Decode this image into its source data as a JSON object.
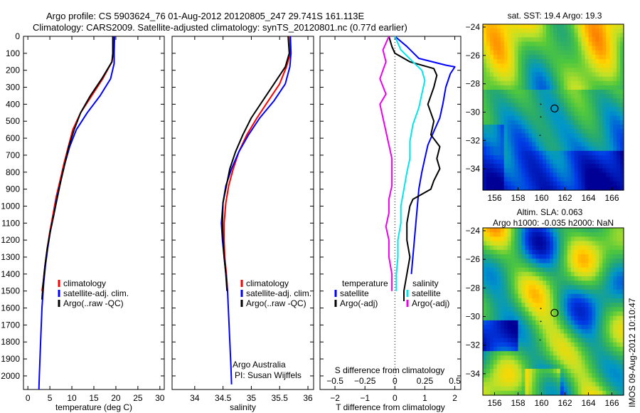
{
  "header": {
    "line1": "Argo profile: CS 5903624_76 01-Aug-2012 20120805_247 29.741S 161.113E",
    "line2": "Climatology: CARS2009. Satellite-adjusted climatology: synTS_20120801.nc (0.77d earlier)"
  },
  "watermark": "IMOS 09-Aug-2012 10:10:47",
  "credit": {
    "line1": "Argo Australia",
    "line2": "PI: Susan Wijffels"
  },
  "colors": {
    "red": "#ff0000",
    "blue": "#0000ff",
    "black": "#000000",
    "cyan": "#00e5ee",
    "magenta": "#ee00ee"
  },
  "chart_data": [
    {
      "type": "line",
      "title": "",
      "xlabel": "temperature (deg C)",
      "ylabel": "",
      "xlim": [
        -1,
        31
      ],
      "ylim": [
        2080,
        0
      ],
      "xticks": [
        0,
        5,
        10,
        15,
        20,
        25,
        30
      ],
      "yticks": [
        0,
        100,
        200,
        300,
        400,
        500,
        600,
        700,
        800,
        900,
        1000,
        1100,
        1200,
        1300,
        1400,
        1500,
        1600,
        1700,
        1800,
        1900,
        2000
      ],
      "legend": [
        "climatology",
        "satellite-adj. clim.",
        "Argo(..raw -QC)"
      ],
      "series": [
        {
          "name": "climatology",
          "color": "red",
          "points": [
            [
              19.5,
              0
            ],
            [
              19.4,
              100
            ],
            [
              19.1,
              150
            ],
            [
              17,
              250
            ],
            [
              14.5,
              350
            ],
            [
              12,
              450
            ],
            [
              10.2,
              550
            ],
            [
              9.2,
              650
            ],
            [
              8.2,
              750
            ],
            [
              7.3,
              850
            ],
            [
              6.4,
              950
            ],
            [
              5.7,
              1050
            ],
            [
              5,
              1150
            ],
            [
              4.4,
              1250
            ],
            [
              3.9,
              1350
            ],
            [
              3.5,
              1450
            ],
            [
              3.2,
              1500
            ]
          ]
        },
        {
          "name": "satellite-adj. clim.",
          "color": "blue",
          "points": [
            [
              19.7,
              0
            ],
            [
              19.6,
              100
            ],
            [
              19.6,
              160
            ],
            [
              18.8,
              250
            ],
            [
              16.4,
              350
            ],
            [
              13.5,
              450
            ],
            [
              11,
              550
            ],
            [
              9.5,
              650
            ],
            [
              8.4,
              750
            ],
            [
              7.5,
              850
            ],
            [
              6.6,
              950
            ],
            [
              5.9,
              1050
            ],
            [
              5.1,
              1150
            ],
            [
              4.5,
              1250
            ],
            [
              4,
              1350
            ],
            [
              3.6,
              1450
            ],
            [
              3.2,
              1600
            ],
            [
              2.9,
              1800
            ],
            [
              2.6,
              2000
            ],
            [
              2.5,
              2080
            ]
          ]
        },
        {
          "name": "Argo(..raw -QC)",
          "color": "black",
          "points": [
            [
              19.3,
              0
            ],
            [
              19.3,
              100
            ],
            [
              19.1,
              150
            ],
            [
              16.8,
              250
            ],
            [
              14.2,
              350
            ],
            [
              12,
              450
            ],
            [
              10.5,
              550
            ],
            [
              9.3,
              650
            ],
            [
              8.4,
              750
            ],
            [
              7.5,
              850
            ],
            [
              6.7,
              950
            ],
            [
              5.9,
              1050
            ],
            [
              5.1,
              1150
            ],
            [
              4.4,
              1250
            ],
            [
              3.9,
              1350
            ],
            [
              3.5,
              1450
            ],
            [
              3.2,
              1550
            ]
          ]
        }
      ]
    },
    {
      "type": "line",
      "title": "",
      "xlabel": "salinity",
      "ylabel": "",
      "xlim": [
        33.6,
        36.1
      ],
      "ylim": [
        2080,
        0
      ],
      "xticks": [
        34,
        34.5,
        35,
        35.5,
        36
      ],
      "legend": [
        "climatology",
        "satellite-adj. clim.",
        "Argo(..raw -QC)"
      ],
      "series": [
        {
          "name": "climatology",
          "color": "red",
          "points": [
            [
              35.68,
              0
            ],
            [
              35.69,
              100
            ],
            [
              35.62,
              180
            ],
            [
              35.5,
              280
            ],
            [
              35.3,
              380
            ],
            [
              35.1,
              480
            ],
            [
              34.92,
              580
            ],
            [
              34.78,
              680
            ],
            [
              34.68,
              780
            ],
            [
              34.6,
              880
            ],
            [
              34.55,
              980
            ],
            [
              34.52,
              1100
            ],
            [
              34.52,
              1200
            ],
            [
              34.53,
              1300
            ],
            [
              34.56,
              1400
            ],
            [
              34.58,
              1500
            ]
          ]
        },
        {
          "name": "satellite-adj. clim.",
          "color": "blue",
          "points": [
            [
              35.69,
              0
            ],
            [
              35.7,
              100
            ],
            [
              35.68,
              180
            ],
            [
              35.6,
              280
            ],
            [
              35.4,
              380
            ],
            [
              35.15,
              480
            ],
            [
              34.95,
              580
            ],
            [
              34.78,
              680
            ],
            [
              34.65,
              780
            ],
            [
              34.55,
              880
            ],
            [
              34.5,
              980
            ],
            [
              34.47,
              1100
            ],
            [
              34.49,
              1200
            ],
            [
              34.52,
              1300
            ],
            [
              34.55,
              1400
            ],
            [
              34.58,
              1500
            ],
            [
              34.6,
              1650
            ],
            [
              34.62,
              1800
            ],
            [
              34.64,
              1950
            ],
            [
              34.65,
              2050
            ]
          ]
        },
        {
          "name": "Argo(..raw -QC)",
          "color": "black",
          "points": [
            [
              35.65,
              0
            ],
            [
              35.67,
              100
            ],
            [
              35.6,
              180
            ],
            [
              35.4,
              280
            ],
            [
              35.2,
              380
            ],
            [
              35,
              480
            ],
            [
              34.85,
              580
            ],
            [
              34.72,
              680
            ],
            [
              34.62,
              780
            ],
            [
              34.56,
              880
            ],
            [
              34.5,
              980
            ],
            [
              34.49,
              1100
            ],
            [
              34.5,
              1200
            ],
            [
              34.52,
              1300
            ],
            [
              34.55,
              1400
            ],
            [
              34.57,
              1500
            ]
          ]
        }
      ]
    },
    {
      "type": "line",
      "title": "",
      "xlabel": "T difference from climatology",
      "xlabel2": "S difference from climatology",
      "ylabel": "",
      "xlim": [
        -2.5,
        2.2
      ],
      "ylim": [
        2080,
        0
      ],
      "xticks": [
        -2,
        -1,
        0,
        1,
        2
      ],
      "xticks_top": [
        -0.5,
        -0.25,
        0,
        0.25,
        0.5
      ],
      "legend_groups": [
        "temperature",
        "salinity"
      ],
      "legend": [
        "satellite",
        "Argo(-adj)",
        "satellite",
        "Argo(-adj)"
      ],
      "series": [
        {
          "name": "satellite",
          "group": "temperature",
          "color": "blue",
          "points": [
            [
              0,
              0
            ],
            [
              0.4,
              60
            ],
            [
              0.8,
              130
            ],
            [
              1.7,
              170
            ],
            [
              2.0,
              180
            ],
            [
              1.85,
              220
            ],
            [
              1.7,
              300
            ],
            [
              1.6,
              400
            ],
            [
              1.5,
              480
            ],
            [
              1.3,
              560
            ],
            [
              1.1,
              640
            ],
            [
              1.0,
              720
            ],
            [
              0.9,
              800
            ],
            [
              0.8,
              900
            ],
            [
              0.75,
              1000
            ],
            [
              0.7,
              1100
            ],
            [
              0.65,
              1200
            ],
            [
              0.6,
              1300
            ],
            [
              0.55,
              1400
            ]
          ]
        },
        {
          "name": "Argo(-adj)",
          "group": "temperature",
          "color": "black",
          "points": [
            [
              -0.2,
              0
            ],
            [
              -0.1,
              60
            ],
            [
              0,
              100
            ],
            [
              0.5,
              150
            ],
            [
              1.3,
              190
            ],
            [
              1.4,
              230
            ],
            [
              1.3,
              300
            ],
            [
              1.1,
              400
            ],
            [
              1.3,
              500
            ],
            [
              1.2,
              580
            ],
            [
              1.5,
              650
            ],
            [
              1.4,
              720
            ],
            [
              1.5,
              780
            ],
            [
              1.3,
              850
            ],
            [
              1.2,
              900
            ],
            [
              0.6,
              960
            ],
            [
              0.5,
              1000
            ],
            [
              0.4,
              1100
            ],
            [
              0.4,
              1200
            ],
            [
              0.5,
              1300
            ],
            [
              0.4,
              1400
            ],
            [
              0.3,
              1500
            ],
            [
              0.3,
              1560
            ]
          ]
        },
        {
          "name": "satellite",
          "group": "salinity",
          "color": "cyan",
          "points": [
            [
              0,
              0
            ],
            [
              0.2,
              80
            ],
            [
              0.6,
              150
            ],
            [
              0.9,
              200
            ],
            [
              1.0,
              260
            ],
            [
              0.9,
              340
            ],
            [
              0.8,
              420
            ],
            [
              0.6,
              520
            ],
            [
              0.5,
              620
            ],
            [
              0.5,
              720
            ],
            [
              0.4,
              800
            ],
            [
              0.3,
              900
            ],
            [
              0.2,
              1000
            ],
            [
              0.2,
              1100
            ],
            [
              0.1,
              1200
            ],
            [
              0.1,
              1300
            ],
            [
              0.05,
              1400
            ],
            [
              0.05,
              1500
            ]
          ]
        },
        {
          "name": "Argo(-adj)",
          "group": "salinity",
          "color": "magenta",
          "points": [
            [
              -0.2,
              0
            ],
            [
              -0.4,
              80
            ],
            [
              -0.3,
              150
            ],
            [
              -0.5,
              250
            ],
            [
              -0.3,
              340
            ],
            [
              -0.5,
              400
            ],
            [
              -0.4,
              480
            ],
            [
              -0.3,
              560
            ],
            [
              -0.2,
              640
            ],
            [
              -0.1,
              720
            ],
            [
              -0.1,
              800
            ],
            [
              -0.1,
              880
            ],
            [
              -0.2,
              960
            ],
            [
              -0.2,
              1040
            ],
            [
              -0.3,
              1120
            ],
            [
              -0.2,
              1200
            ],
            [
              -0.2,
              1300
            ],
            [
              -0.1,
              1400
            ],
            [
              -0.1,
              1500
            ]
          ]
        }
      ]
    },
    {
      "type": "heatmap",
      "title": "sat. SST: 19.4  Argo: 19.3",
      "xlim": [
        155,
        167
      ],
      "ylim": [
        -35.5,
        -23.8
      ],
      "xticks": [
        156,
        158,
        160,
        162,
        164,
        166
      ],
      "yticks": [
        -24,
        -26,
        -28,
        -30,
        -32,
        -34
      ],
      "marker": {
        "lon": 161.113,
        "lat": -29.741
      }
    },
    {
      "type": "heatmap",
      "title": "Altim. SLA: 0.063",
      "subtitle": "Argo h1000: -0.035 h2000: NaN",
      "xlim": [
        155,
        167
      ],
      "ylim": [
        -35.5,
        -23.8
      ],
      "xticks": [
        156,
        158,
        160,
        162,
        164,
        166
      ],
      "yticks": [
        -24,
        -26,
        -28,
        -30,
        -32,
        -34
      ],
      "marker": {
        "lon": 161.113,
        "lat": -29.741
      }
    }
  ]
}
